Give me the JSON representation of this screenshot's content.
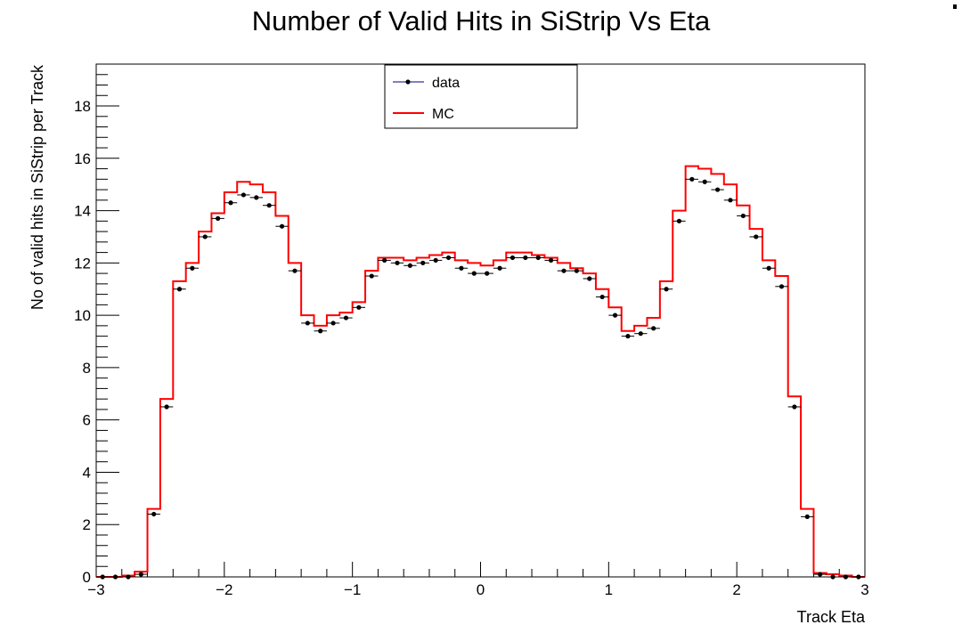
{
  "chart_data": {
    "type": "line",
    "title": "Number of Valid Hits in SiStrip Vs Eta",
    "xlabel": "Track Eta",
    "ylabel": "No of valid hits in SiStrip per Track",
    "xlim": [
      -3,
      3
    ],
    "ylim": [
      0,
      19.6
    ],
    "xticks": [
      -3,
      -2,
      -1,
      0,
      1,
      2,
      3
    ],
    "xtick_labels": [
      "−3",
      "−2",
      "−1",
      "0",
      "1",
      "2",
      "3"
    ],
    "yticks": [
      0,
      2,
      4,
      6,
      8,
      10,
      12,
      14,
      16,
      18
    ],
    "ytick_labels": [
      "0",
      "2",
      "4",
      "6",
      "8",
      "10",
      "12",
      "14",
      "16",
      "18"
    ],
    "grid": false,
    "legend_position": "top-center",
    "bin_edges_range": [
      -3,
      3
    ],
    "bin_count": 60,
    "series": [
      {
        "name": "data",
        "style": "markers",
        "color": "#000000",
        "legend_color": "#000080",
        "values": [
          0.0,
          0.0,
          0.0,
          0.1,
          2.4,
          6.5,
          11.0,
          11.8,
          13.0,
          13.7,
          14.3,
          14.6,
          14.5,
          14.2,
          13.4,
          11.7,
          9.7,
          9.4,
          9.7,
          9.9,
          10.3,
          11.5,
          12.1,
          12.0,
          11.9,
          12.0,
          12.1,
          12.2,
          11.8,
          11.6,
          11.6,
          11.8,
          12.2,
          12.2,
          12.2,
          12.1,
          11.7,
          11.7,
          11.4,
          10.7,
          10.0,
          9.2,
          9.3,
          9.5,
          11.0,
          13.6,
          15.2,
          15.1,
          14.8,
          14.4,
          13.8,
          13.0,
          11.8,
          11.1,
          6.5,
          2.3,
          0.1,
          0.0,
          0.0,
          0.0
        ]
      },
      {
        "name": "MC",
        "style": "histogram",
        "color": "#ff0000",
        "values": [
          0.0,
          0.0,
          0.05,
          0.2,
          2.6,
          6.8,
          11.3,
          12.0,
          13.2,
          13.9,
          14.7,
          15.1,
          15.0,
          14.7,
          13.8,
          12.0,
          10.0,
          9.6,
          10.0,
          10.1,
          10.5,
          11.7,
          12.2,
          12.2,
          12.1,
          12.2,
          12.3,
          12.4,
          12.1,
          12.0,
          11.9,
          12.1,
          12.4,
          12.4,
          12.3,
          12.2,
          12.0,
          11.8,
          11.6,
          11.0,
          10.3,
          9.4,
          9.6,
          9.9,
          11.3,
          14.0,
          15.7,
          15.6,
          15.4,
          15.0,
          14.2,
          13.3,
          12.1,
          11.5,
          6.9,
          2.6,
          0.15,
          0.1,
          0.05,
          0.0
        ]
      }
    ]
  }
}
